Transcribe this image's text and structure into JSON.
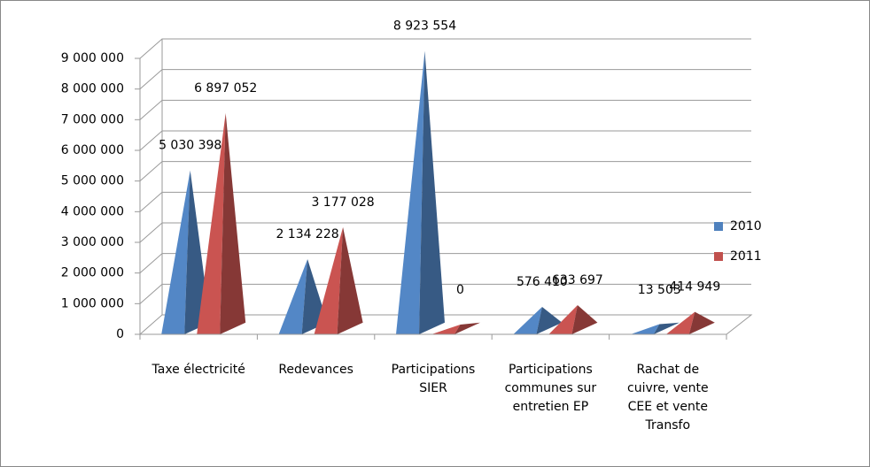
{
  "chart_data": {
    "type": "pyramid3d",
    "categories": [
      "Taxe électricité",
      "Redevances",
      "Participations SIER",
      "Participations communes sur entretien EP",
      "Rachat de cuivre, vente CEE et vente Transfo"
    ],
    "series": [
      {
        "name": "2010",
        "color": "#4f81bd",
        "values": [
          5030398,
          2134228,
          8923554,
          576410,
          13503
        ],
        "value_labels": [
          "5 030 398",
          "2 134 228",
          "8 923 554",
          "576 410",
          "13 503"
        ]
      },
      {
        "name": "2011",
        "color": "#c0504d",
        "values": [
          6897052,
          3177028,
          0,
          633697,
          414949
        ],
        "value_labels": [
          "6 897 052",
          "3 177 028",
          "0",
          "633 697",
          "414 949"
        ]
      }
    ],
    "ylim": [
      0,
      9000000
    ],
    "yticks": [
      {
        "value": 0,
        "label": "0"
      },
      {
        "value": 1000000,
        "label": "1 000 000"
      },
      {
        "value": 2000000,
        "label": "2 000 000"
      },
      {
        "value": 3000000,
        "label": "3 000 000"
      },
      {
        "value": 4000000,
        "label": "4 000 000"
      },
      {
        "value": 5000000,
        "label": "5 000 000"
      },
      {
        "value": 6000000,
        "label": "6 000 000"
      },
      {
        "value": 7000000,
        "label": "7 000 000"
      },
      {
        "value": 8000000,
        "label": "8 000 000"
      },
      {
        "value": 9000000,
        "label": "9 000 000"
      }
    ],
    "grid": true,
    "legend": "right"
  }
}
